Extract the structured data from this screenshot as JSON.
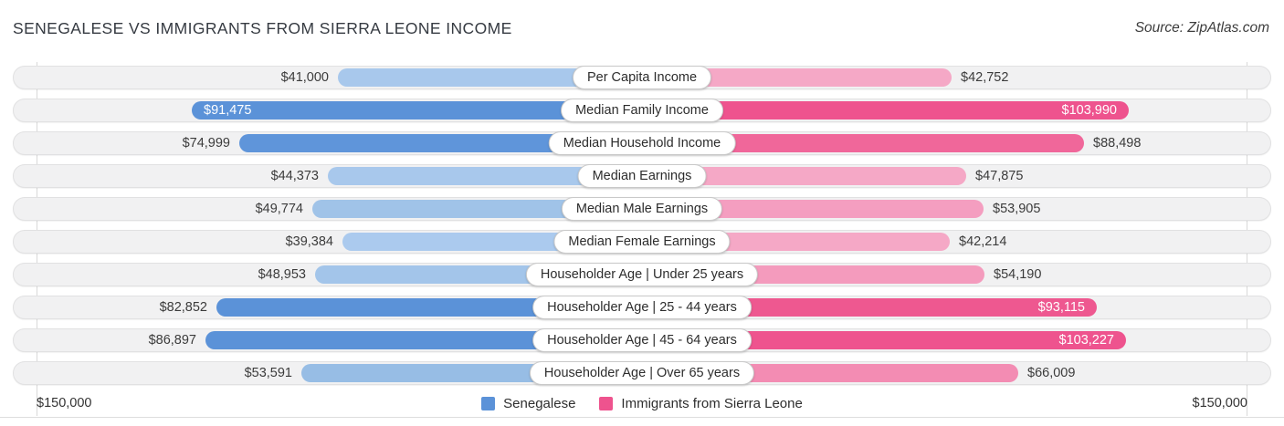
{
  "header": {
    "title": "SENEGALESE VS IMMIGRANTS FROM SIERRA LEONE INCOME",
    "source": "Source: ZipAtlas.com"
  },
  "axis": {
    "left_label": "$150,000",
    "right_label": "$150,000"
  },
  "legend": [
    {
      "label": "Senegalese",
      "color": "#5B92D8"
    },
    {
      "label": "Immigrants from Sierra Leone",
      "color": "#EE538E"
    }
  ],
  "chart_data": {
    "type": "bar",
    "orientation": "bidirectional-horizontal",
    "title": "Senegalese vs Immigrants from Sierra Leone Income",
    "axis_max": 150000,
    "axis_max_label": "$150,000",
    "legend_position": "bottom-center",
    "series_names": [
      "Senegalese",
      "Immigrants from Sierra Leone"
    ],
    "categories": [
      "Per Capita Income",
      "Median Family Income",
      "Median Household Income",
      "Median Earnings",
      "Median Male Earnings",
      "Median Female Earnings",
      "Householder Age | Under 25 years",
      "Householder Age | 25 - 44 years",
      "Householder Age | 45 - 64 years",
      "Householder Age | Over 65 years"
    ],
    "rows": [
      {
        "category": "Per Capita Income",
        "left": {
          "value": 41000,
          "label": "$41,000",
          "color": "#A8C8EC",
          "label_inside": false
        },
        "right": {
          "value": 42752,
          "label": "$42,752",
          "color": "#F5A8C6",
          "label_inside": false
        }
      },
      {
        "category": "Median Family Income",
        "left": {
          "value": 91475,
          "label": "$91,475",
          "color": "#5B92D8",
          "label_inside": true
        },
        "right": {
          "value": 103990,
          "label": "$103,990",
          "color": "#EE538E",
          "label_inside": true
        }
      },
      {
        "category": "Median Household Income",
        "left": {
          "value": 74999,
          "label": "$74,999",
          "color": "#5F95DA",
          "label_inside": false
        },
        "right": {
          "value": 88498,
          "label": "$88,498",
          "color": "#F0679A",
          "label_inside": false
        }
      },
      {
        "category": "Median Earnings",
        "left": {
          "value": 44373,
          "label": "$44,373",
          "color": "#A8C8EC",
          "label_inside": false
        },
        "right": {
          "value": 47875,
          "label": "$47,875",
          "color": "#F5A8C6",
          "label_inside": false
        }
      },
      {
        "category": "Median Male Earnings",
        "left": {
          "value": 49774,
          "label": "$49,774",
          "color": "#A0C3E8",
          "label_inside": false
        },
        "right": {
          "value": 53905,
          "label": "$53,905",
          "color": "#F49EC0",
          "label_inside": false
        }
      },
      {
        "category": "Median Female Earnings",
        "left": {
          "value": 39384,
          "label": "$39,384",
          "color": "#ABCAEE",
          "label_inside": false
        },
        "right": {
          "value": 42214,
          "label": "$42,214",
          "color": "#F5A8C6",
          "label_inside": false
        }
      },
      {
        "category": "Householder Age | Under 25 years",
        "left": {
          "value": 48953,
          "label": "$48,953",
          "color": "#A3C5EA",
          "label_inside": false
        },
        "right": {
          "value": 54190,
          "label": "$54,190",
          "color": "#F49BBD",
          "label_inside": false
        }
      },
      {
        "category": "Householder Age | 25 - 44 years",
        "left": {
          "value": 82852,
          "label": "$82,852",
          "color": "#5B92D8",
          "label_inside": false
        },
        "right": {
          "value": 93115,
          "label": "$93,115",
          "color": "#EE5890",
          "label_inside": true
        }
      },
      {
        "category": "Householder Age | 45 - 64 years",
        "left": {
          "value": 86897,
          "label": "$86,897",
          "color": "#5B92D8",
          "label_inside": false
        },
        "right": {
          "value": 103227,
          "label": "$103,227",
          "color": "#EE538E",
          "label_inside": true
        }
      },
      {
        "category": "Householder Age | Over 65 years",
        "left": {
          "value": 53591,
          "label": "$53,591",
          "color": "#97BDE5",
          "label_inside": false
        },
        "right": {
          "value": 66009,
          "label": "$66,009",
          "color": "#F38CB3",
          "label_inside": false
        }
      }
    ]
  }
}
